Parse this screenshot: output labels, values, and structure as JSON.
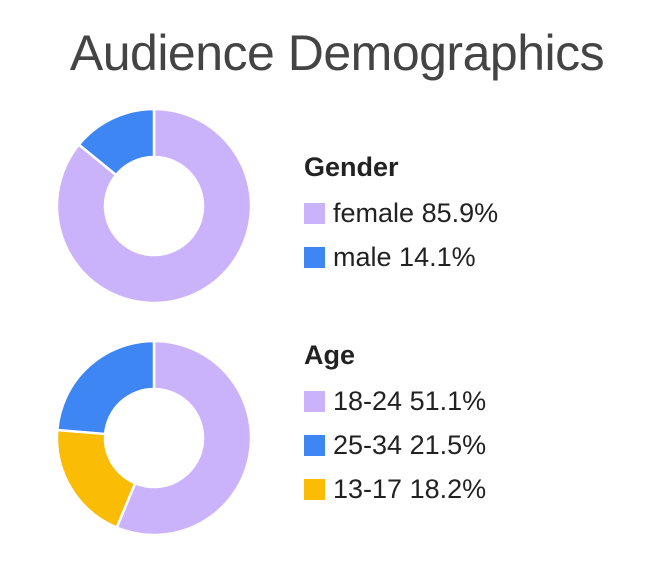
{
  "title": "Audience Demographics",
  "chart_data": [
    {
      "type": "pie",
      "style": "donut",
      "title": "Gender",
      "slices": [
        {
          "label": "female",
          "value": 85.9,
          "display": "85.9%",
          "color": "#cbb3fc"
        },
        {
          "label": "male",
          "value": 14.1,
          "display": "14.1%",
          "color": "#3f86f5"
        }
      ]
    },
    {
      "type": "pie",
      "style": "donut",
      "title": "Age",
      "slices": [
        {
          "label": "18-24",
          "value": 51.1,
          "display": "51.1%",
          "color": "#cbb3fc"
        },
        {
          "label": "25-34",
          "value": 21.5,
          "display": "21.5%",
          "color": "#3f86f5"
        },
        {
          "label": "13-17",
          "value": 18.2,
          "display": "18.2%",
          "color": "#fbbc05"
        }
      ]
    }
  ]
}
